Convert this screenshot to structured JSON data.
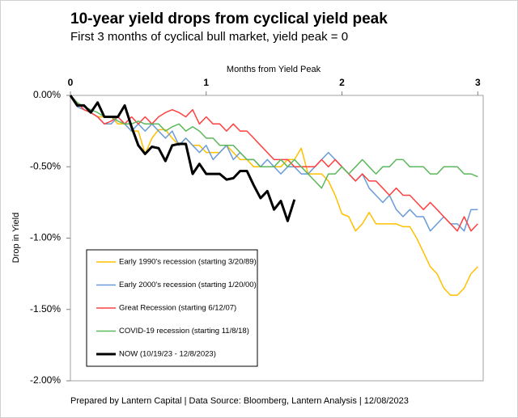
{
  "chart_data": {
    "type": "line",
    "title": "10-year yield drops from cyclical yield peak",
    "subtitle": "First 3 months of cyclical bull market, yield peak = 0",
    "x_label": "Months from Yield Peak",
    "y_label": "Drop in Yield",
    "footer": "Prepared by Lantern Capital | Data Source: Bloomberg, Lantern Analysis | 12/08/2023",
    "x": [
      0,
      0.05,
      0.1,
      0.15,
      0.2,
      0.25,
      0.3,
      0.35,
      0.4,
      0.45,
      0.5,
      0.55,
      0.6,
      0.65,
      0.7,
      0.75,
      0.8,
      0.85,
      0.9,
      0.95,
      1,
      1.05,
      1.1,
      1.15,
      1.2,
      1.25,
      1.3,
      1.35,
      1.4,
      1.45,
      1.5,
      1.55,
      1.6,
      1.65,
      1.7,
      1.75,
      1.8,
      1.85,
      1.9,
      1.95,
      2,
      2.05,
      2.1,
      2.15,
      2.2,
      2.25,
      2.3,
      2.35,
      2.4,
      2.45,
      2.5,
      2.55,
      2.6,
      2.65,
      2.7,
      2.75,
      2.8,
      2.85,
      2.9,
      2.95,
      3
    ],
    "xlim": [
      0,
      3.04
    ],
    "xticks": [
      0,
      1,
      2,
      3
    ],
    "ylim": [
      -2,
      0
    ],
    "yticks": [
      {
        "value": 0,
        "label": "0.00%"
      },
      {
        "value": -0.5,
        "label": "-0.50%"
      },
      {
        "value": -1,
        "label": "-1.00%"
      },
      {
        "value": -1.5,
        "label": "-1.50%"
      },
      {
        "value": -2,
        "label": "-2.00%"
      }
    ],
    "legend_position": "lower-left",
    "series": [
      {
        "name": "Early 1990's recession (starting 3/20/89)",
        "color": "#ffc000",
        "width": 1.5,
        "values": [
          0,
          -0.08,
          -0.1,
          -0.12,
          -0.15,
          -0.15,
          -0.15,
          -0.2,
          -0.2,
          -0.25,
          -0.25,
          -0.41,
          -0.3,
          -0.24,
          -0.24,
          -0.3,
          -0.35,
          -0.3,
          -0.35,
          -0.35,
          -0.4,
          -0.4,
          -0.4,
          -0.35,
          -0.4,
          -0.45,
          -0.45,
          -0.5,
          -0.5,
          -0.5,
          -0.5,
          -0.5,
          -0.45,
          -0.45,
          -0.37,
          -0.55,
          -0.55,
          -0.55,
          -0.6,
          -0.7,
          -0.83,
          -0.85,
          -0.95,
          -0.9,
          -0.82,
          -0.9,
          -0.9,
          -0.9,
          -0.9,
          -0.92,
          -0.92,
          -1.0,
          -1.1,
          -1.2,
          -1.25,
          -1.35,
          -1.4,
          -1.4,
          -1.35,
          -1.25,
          -1.2
        ]
      },
      {
        "name": "Early 2000's recession (starting 1/20/00)",
        "color": "#6a9bd8",
        "width": 1.5,
        "values": [
          0,
          -0.08,
          -0.1,
          -0.12,
          -0.15,
          -0.2,
          -0.2,
          -0.15,
          -0.2,
          -0.25,
          -0.2,
          -0.25,
          -0.2,
          -0.25,
          -0.3,
          -0.25,
          -0.35,
          -0.3,
          -0.35,
          -0.4,
          -0.35,
          -0.45,
          -0.4,
          -0.35,
          -0.45,
          -0.4,
          -0.45,
          -0.45,
          -0.5,
          -0.45,
          -0.5,
          -0.55,
          -0.5,
          -0.5,
          -0.55,
          -0.55,
          -0.5,
          -0.45,
          -0.4,
          -0.45,
          -0.5,
          -0.55,
          -0.6,
          -0.55,
          -0.65,
          -0.7,
          -0.75,
          -0.7,
          -0.8,
          -0.85,
          -0.8,
          -0.85,
          -0.85,
          -0.95,
          -0.9,
          -0.85,
          -0.9,
          -0.9,
          -0.95,
          -0.8,
          -0.8
        ]
      },
      {
        "name": "Great Recession (starting 6/12/07)",
        "color": "#ff4040",
        "width": 1.5,
        "values": [
          0,
          -0.05,
          -0.1,
          -0.12,
          -0.15,
          -0.2,
          -0.18,
          -0.15,
          -0.2,
          -0.15,
          -0.2,
          -0.15,
          -0.2,
          -0.15,
          -0.12,
          -0.1,
          -0.12,
          -0.15,
          -0.1,
          -0.2,
          -0.15,
          -0.2,
          -0.2,
          -0.25,
          -0.2,
          -0.25,
          -0.25,
          -0.3,
          -0.35,
          -0.4,
          -0.45,
          -0.45,
          -0.45,
          -0.5,
          -0.5,
          -0.5,
          -0.5,
          -0.45,
          -0.5,
          -0.45,
          -0.5,
          -0.55,
          -0.6,
          -0.55,
          -0.6,
          -0.6,
          -0.65,
          -0.7,
          -0.65,
          -0.7,
          -0.7,
          -0.75,
          -0.8,
          -0.75,
          -0.8,
          -0.85,
          -0.9,
          -0.95,
          -0.85,
          -0.95,
          -0.9
        ]
      },
      {
        "name": "COVID-19 recession (starting 11/8/18)",
        "color": "#5cb85c",
        "width": 1.5,
        "values": [
          0,
          -0.05,
          -0.08,
          -0.1,
          -0.12,
          -0.15,
          -0.15,
          -0.18,
          -0.2,
          -0.2,
          -0.18,
          -0.2,
          -0.2,
          -0.2,
          -0.25,
          -0.22,
          -0.2,
          -0.25,
          -0.22,
          -0.25,
          -0.3,
          -0.3,
          -0.35,
          -0.35,
          -0.35,
          -0.4,
          -0.45,
          -0.45,
          -0.5,
          -0.5,
          -0.5,
          -0.45,
          -0.5,
          -0.45,
          -0.5,
          -0.55,
          -0.6,
          -0.65,
          -0.55,
          -0.55,
          -0.5,
          -0.55,
          -0.5,
          -0.45,
          -0.5,
          -0.55,
          -0.5,
          -0.5,
          -0.45,
          -0.45,
          -0.5,
          -0.5,
          -0.5,
          -0.55,
          -0.55,
          -0.5,
          -0.5,
          -0.5,
          -0.55,
          -0.55,
          -0.57
        ]
      },
      {
        "name": "NOW (10/19/23 - 12/8/2023)",
        "color": "#000000",
        "width": 3,
        "values": [
          0,
          -0.07,
          -0.07,
          -0.12,
          -0.05,
          -0.15,
          -0.15,
          -0.15,
          -0.07,
          -0.22,
          -0.35,
          -0.41,
          -0.36,
          -0.37,
          -0.46,
          -0.35,
          -0.34,
          -0.34,
          -0.55,
          -0.48,
          -0.55,
          -0.55,
          -0.55,
          -0.59,
          -0.58,
          -0.53,
          -0.53,
          -0.63,
          -0.72,
          -0.67,
          -0.8,
          -0.74,
          -0.88,
          -0.73,
          null,
          null,
          null,
          null,
          null,
          null,
          null,
          null,
          null,
          null,
          null,
          null,
          null,
          null,
          null,
          null,
          null,
          null,
          null,
          null,
          null,
          null,
          null,
          null,
          null,
          null,
          null
        ]
      }
    ]
  }
}
